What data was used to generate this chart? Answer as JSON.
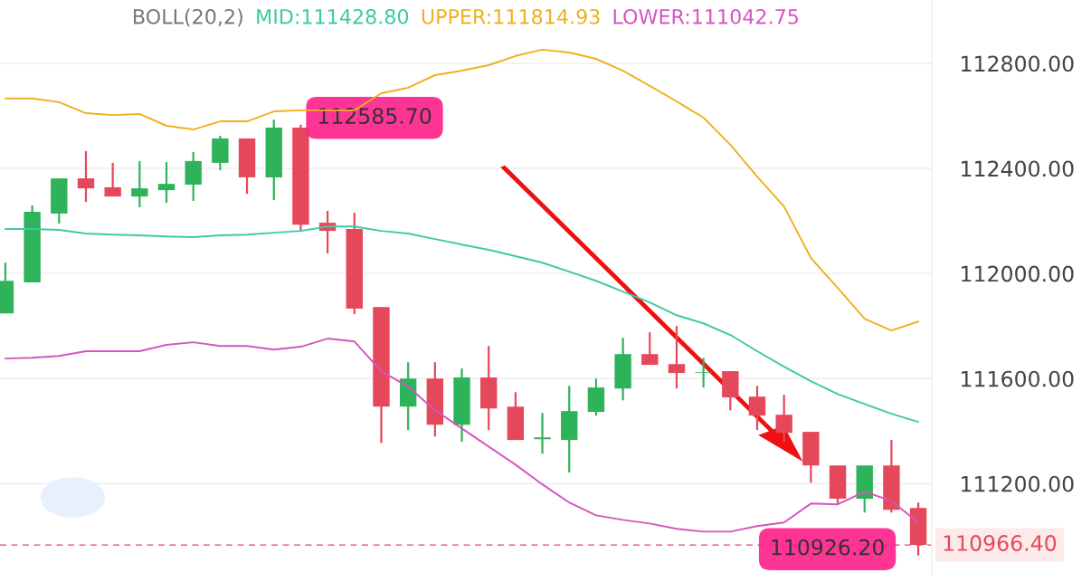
{
  "chart_data": {
    "type": "candlestick",
    "legend_title": "BOLL(20,2)",
    "legend": "top",
    "grid": "y",
    "categories": [
      null,
      null,
      null,
      null,
      null,
      null,
      null,
      null,
      null,
      null,
      null,
      null,
      null,
      null,
      null,
      null,
      null,
      null,
      null,
      null,
      null,
      null,
      null,
      null,
      null,
      null,
      null,
      null,
      null,
      null,
      null,
      null,
      null,
      null,
      null
    ],
    "ohlc": [
      [
        111848,
        112041,
        111848,
        111972
      ],
      [
        111966,
        112259,
        111966,
        112235
      ],
      [
        112228,
        112362,
        112190,
        112362
      ],
      [
        112362,
        112466,
        112272,
        112324
      ],
      [
        112328,
        112421,
        112293,
        112293
      ],
      [
        112293,
        112428,
        112252,
        112324
      ],
      [
        112317,
        112424,
        112269,
        112341
      ],
      [
        112338,
        112462,
        112276,
        112428
      ],
      [
        112421,
        112524,
        112393,
        112514
      ],
      [
        112514,
        112514,
        112303,
        112366
      ],
      [
        112366,
        112585.7,
        112279,
        112555
      ],
      [
        112555,
        112566,
        112159,
        112186
      ],
      [
        112193,
        112238,
        112076,
        112162
      ],
      [
        112169,
        112231,
        111845,
        111866
      ],
      [
        111872,
        111872,
        111355,
        111493
      ],
      [
        111493,
        111662,
        111404,
        111600
      ],
      [
        111600,
        111662,
        111379,
        111424
      ],
      [
        111424,
        111638,
        111359,
        111604
      ],
      [
        111604,
        111724,
        111404,
        111486
      ],
      [
        111493,
        111548,
        111366,
        111366
      ],
      [
        111369,
        111469,
        111314,
        111376
      ],
      [
        111366,
        111572,
        111242,
        111476
      ],
      [
        111473,
        111600,
        111459,
        111566
      ],
      [
        111562,
        111755,
        111517,
        111693
      ],
      [
        111693,
        111776,
        111652,
        111652
      ],
      [
        111655,
        111800,
        111562,
        111621
      ],
      [
        111621,
        111679,
        111566,
        111624
      ],
      [
        111628,
        111628,
        111479,
        111528
      ],
      [
        111531,
        111572,
        111404,
        111459
      ],
      [
        111462,
        111538,
        111359,
        111393
      ],
      [
        111397,
        111397,
        111204,
        111269
      ],
      [
        111269,
        111269,
        111121,
        111142
      ],
      [
        111142,
        111269,
        111090,
        111269
      ],
      [
        111269,
        111366,
        111090,
        111100
      ],
      [
        111107,
        111128,
        110926.2,
        110966.4
      ]
    ],
    "colors": [
      "#2fb35a",
      "#2fb35a",
      "#2fb35a",
      "#e5485a",
      "#e5485a",
      "#2fb35a",
      "#2fb35a",
      "#2fb35a",
      "#2fb35a",
      "#e5485a",
      "#2fb35a",
      "#e5485a",
      "#e5485a",
      "#e5485a",
      "#e5485a",
      "#2fb35a",
      "#e5485a",
      "#2fb35a",
      "#e5485a",
      "#e5485a",
      "#2fb35a",
      "#2fb35a",
      "#2fb35a",
      "#2fb35a",
      "#e5485a",
      "#e5485a",
      "#2fb35a",
      "#e5485a",
      "#e5485a",
      "#e5485a",
      "#e5485a",
      "#e5485a",
      "#2fb35a",
      "#e5485a",
      "#e5485a"
    ],
    "series": [
      {
        "name": "MID:111428.80",
        "type": "line",
        "color": "#3ec9a7",
        "values": [
          112169,
          112169,
          112166,
          112152,
          112148,
          112145,
          112141,
          112138,
          112145,
          112148,
          112155,
          112162,
          112179,
          112179,
          112162,
          112152,
          112131,
          112110,
          112090,
          112066,
          112041,
          112007,
          111972,
          111931,
          111890,
          111841,
          111810,
          111766,
          111704,
          111645,
          111590,
          111541,
          111503,
          111466,
          111435
        ]
      },
      {
        "name": "UPPER:111814.93",
        "type": "line",
        "color": "#f0b020",
        "values": [
          112666,
          112666,
          112652,
          112610,
          112603,
          112607,
          112562,
          112548,
          112579,
          112579,
          112617,
          112621,
          112621,
          112621,
          112686,
          112707,
          112755,
          112772,
          112793,
          112828,
          112852,
          112841,
          112817,
          112772,
          112714,
          112655,
          112593,
          112490,
          112369,
          112255,
          112059,
          111945,
          111828,
          111783,
          111817
        ]
      },
      {
        "name": "LOWER:111042.75",
        "type": "line",
        "color": "#d555c0",
        "values": [
          111676,
          111679,
          111686,
          111704,
          111704,
          111704,
          111728,
          111738,
          111724,
          111724,
          111710,
          111721,
          111752,
          111741,
          111628,
          111569,
          111479,
          111410,
          111341,
          111272,
          111197,
          111128,
          111079,
          111062,
          111048,
          111028,
          111017,
          111017,
          111038,
          111052,
          111124,
          111121,
          111169,
          111134,
          111052
        ]
      }
    ],
    "ylim": [
      110852,
      113041
    ],
    "yticks": [
      {
        "value": 111200,
        "label": "111200.00"
      },
      {
        "value": 111600,
        "label": "111600.00"
      },
      {
        "value": 112000,
        "label": "112000.00"
      },
      {
        "value": 112400,
        "label": "112400.00"
      },
      {
        "value": 112800,
        "label": "112800.00"
      }
    ],
    "ref_lines": [
      {
        "axis": "y",
        "value": 110966.4,
        "label": "110966.40",
        "color": "#e5485a",
        "line_style": "dashed"
      }
    ],
    "annotations": [
      "112585.70",
      "110926.20"
    ]
  }
}
